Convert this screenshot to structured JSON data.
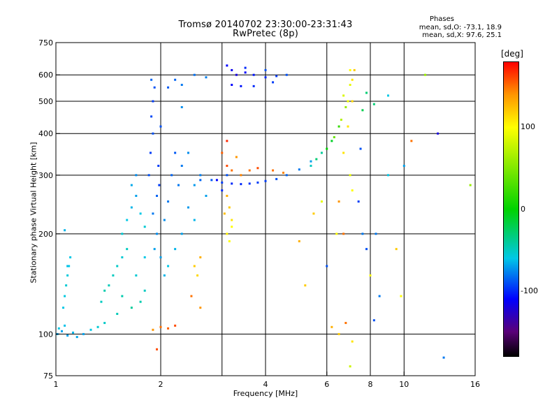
{
  "header": {
    "title_line1": "Tromsø 20140702 23:30:00-23:31:43",
    "title_line2": "RwPretec (8p)",
    "phases_heading": "Phases",
    "phase_o": "mean, sd,O: -73.1, 18.9",
    "phase_x": "mean, sd,X: 97.6, 25.1"
  },
  "colorbar": {
    "unit": "[deg]",
    "range": [
      -180,
      180
    ],
    "ticks": [
      {
        "value": 100,
        "label": "100"
      },
      {
        "value": 0,
        "label": "0"
      },
      {
        "value": -100,
        "label": "-100"
      }
    ]
  },
  "chart_data": {
    "type": "scatter",
    "xlabel": "Frequency [MHz]",
    "ylabel": "Stationary phase Virtual Height [km]",
    "x_scale": "log",
    "y_scale": "log",
    "xlim": [
      1,
      16
    ],
    "ylim": [
      75,
      750
    ],
    "x_ticks": [
      {
        "value": 1,
        "label": "1"
      },
      {
        "value": 2,
        "label": "2"
      },
      {
        "value": 4,
        "label": "4"
      },
      {
        "value": 6,
        "label": "6"
      },
      {
        "value": 8,
        "label": "8"
      },
      {
        "value": 10,
        "label": "10"
      },
      {
        "value": 16,
        "label": "16"
      }
    ],
    "y_ticks": [
      {
        "value": 75,
        "label": "75"
      },
      {
        "value": 100,
        "label": "100"
      },
      {
        "value": 200,
        "label": "200"
      },
      {
        "value": 300,
        "label": "300"
      },
      {
        "value": 400,
        "label": "400"
      },
      {
        "value": 500,
        "label": "500"
      },
      {
        "value": 600,
        "label": "600"
      },
      {
        "value": 750,
        "label": "750"
      }
    ],
    "x_gridlines": [
      2,
      3,
      4,
      6,
      8,
      10
    ],
    "y_gridlines": [
      100,
      200,
      300,
      400,
      500,
      600
    ],
    "series": [
      {
        "points": [
          [
            1.01,
            100,
            -70
          ],
          [
            1.02,
            104,
            -60
          ],
          [
            1.04,
            102,
            -70
          ],
          [
            1.06,
            106,
            -62
          ],
          [
            1.08,
            99,
            -70
          ],
          [
            1.12,
            101,
            -65
          ],
          [
            1.15,
            98,
            -68
          ],
          [
            1.2,
            100,
            -70
          ],
          [
            1.26,
            103,
            -60
          ],
          [
            1.32,
            105,
            -55
          ],
          [
            1.38,
            108,
            -52
          ],
          [
            1.05,
            120,
            -60
          ],
          [
            1.06,
            130,
            -58
          ],
          [
            1.07,
            140,
            -55
          ],
          [
            1.08,
            150,
            -57
          ],
          [
            1.09,
            160,
            -60
          ],
          [
            1.1,
            170,
            -60
          ],
          [
            1.06,
            205,
            -65
          ],
          [
            1.08,
            160,
            -62
          ],
          [
            1.35,
            125,
            -50
          ],
          [
            1.38,
            135,
            -45
          ],
          [
            1.42,
            140,
            -48
          ],
          [
            1.46,
            150,
            -50
          ],
          [
            1.5,
            160,
            -52
          ],
          [
            1.55,
            170,
            -55
          ],
          [
            1.6,
            180,
            -50
          ],
          [
            1.55,
            200,
            -55
          ],
          [
            1.6,
            220,
            -60
          ],
          [
            1.65,
            240,
            -65
          ],
          [
            1.7,
            260,
            -70
          ],
          [
            1.65,
            280,
            -68
          ],
          [
            1.75,
            230,
            -60
          ],
          [
            1.8,
            210,
            -55
          ],
          [
            1.7,
            300,
            -75
          ],
          [
            1.55,
            130,
            -45
          ],
          [
            1.65,
            120,
            -40
          ],
          [
            1.75,
            125,
            -45
          ],
          [
            1.8,
            135,
            -50
          ],
          [
            1.5,
            115,
            -48
          ],
          [
            1.7,
            150,
            -55
          ],
          [
            1.8,
            170,
            -60
          ],
          [
            1.85,
            300,
            -90
          ],
          [
            1.87,
            350,
            -95
          ],
          [
            1.9,
            400,
            -90
          ],
          [
            1.88,
            450,
            -92
          ],
          [
            1.9,
            500,
            -95
          ],
          [
            1.92,
            550,
            -90
          ],
          [
            1.88,
            580,
            -85
          ],
          [
            1.95,
            260,
            -85
          ],
          [
            1.9,
            230,
            -80
          ],
          [
            1.95,
            200,
            -75
          ],
          [
            1.92,
            180,
            -70
          ],
          [
            2.0,
            170,
            -70
          ],
          [
            1.97,
            320,
            -95
          ],
          [
            1.98,
            280,
            -95
          ],
          [
            2.0,
            420,
            -90
          ],
          [
            2.05,
            220,
            -75
          ],
          [
            2.1,
            250,
            -80
          ],
          [
            2.15,
            300,
            -85
          ],
          [
            2.2,
            350,
            -88
          ],
          [
            2.25,
            280,
            -80
          ],
          [
            2.3,
            320,
            -80
          ],
          [
            2.4,
            350,
            -75
          ],
          [
            2.5,
            280,
            -72
          ],
          [
            2.6,
            300,
            -78
          ],
          [
            2.7,
            260,
            -70
          ],
          [
            2.5,
            220,
            -65
          ],
          [
            2.3,
            200,
            -70
          ],
          [
            2.4,
            240,
            -72
          ],
          [
            2.1,
            550,
            -88
          ],
          [
            2.2,
            580,
            -85
          ],
          [
            2.3,
            560,
            -80
          ],
          [
            2.5,
            600,
            -82
          ],
          [
            2.7,
            590,
            -78
          ],
          [
            2.3,
            480,
            -75
          ],
          [
            2.2,
            180,
            -65
          ],
          [
            2.1,
            160,
            -60
          ],
          [
            2.05,
            150,
            -65
          ],
          [
            2.6,
            290,
            -85
          ],
          [
            2.8,
            290,
            -88
          ],
          [
            3.0,
            285,
            -95
          ],
          [
            3.2,
            283,
            -100
          ],
          [
            3.4,
            282,
            -100
          ],
          [
            3.6,
            283,
            -98
          ],
          [
            3.8,
            285,
            -95
          ],
          [
            4.0,
            288,
            -95
          ],
          [
            4.3,
            292,
            -90
          ],
          [
            4.6,
            300,
            -85
          ],
          [
            5.0,
            312,
            -80
          ],
          [
            5.4,
            330,
            -70
          ],
          [
            5.8,
            350,
            -40
          ],
          [
            6.2,
            380,
            -10
          ],
          [
            6.5,
            420,
            20
          ],
          [
            6.8,
            480,
            60
          ],
          [
            7.0,
            560,
            90
          ],
          [
            5.4,
            320,
            -50
          ],
          [
            5.6,
            335,
            -30
          ],
          [
            6.0,
            360,
            0
          ],
          [
            6.3,
            390,
            40
          ],
          [
            6.6,
            440,
            70
          ],
          [
            6.9,
            500,
            95
          ],
          [
            7.1,
            580,
            110
          ],
          [
            6.7,
            520,
            85
          ],
          [
            7.0,
            620,
            100
          ],
          [
            6.7,
            350,
            110
          ],
          [
            6.9,
            420,
            110
          ],
          [
            7.1,
            500,
            115
          ],
          [
            7.2,
            620,
            120
          ],
          [
            7.0,
            300,
            90
          ],
          [
            7.1,
            270,
            100
          ],
          [
            6.5,
            250,
            140
          ],
          [
            6.7,
            200,
            150
          ],
          [
            3.1,
            640,
            -110
          ],
          [
            3.2,
            620,
            -115
          ],
          [
            3.3,
            600,
            -120
          ],
          [
            3.5,
            610,
            -110
          ],
          [
            3.7,
            600,
            -105
          ],
          [
            4.0,
            590,
            -100
          ],
          [
            4.3,
            595,
            -95
          ],
          [
            4.6,
            600,
            -90
          ],
          [
            4.0,
            620,
            -90
          ],
          [
            3.5,
            630,
            -100
          ],
          [
            3.2,
            560,
            -110
          ],
          [
            3.4,
            555,
            -105
          ],
          [
            3.7,
            555,
            -100
          ],
          [
            4.2,
            570,
            -95
          ],
          [
            2.9,
            290,
            -110
          ],
          [
            3.0,
            270,
            -100
          ],
          [
            3.1,
            300,
            -90
          ],
          [
            3.0,
            350,
            155
          ],
          [
            3.1,
            320,
            160
          ],
          [
            3.2,
            310,
            150
          ],
          [
            3.3,
            340,
            140
          ],
          [
            3.4,
            300,
            145
          ],
          [
            3.6,
            310,
            150
          ],
          [
            3.8,
            315,
            160
          ],
          [
            4.2,
            310,
            150
          ],
          [
            4.5,
            305,
            145
          ],
          [
            3.1,
            260,
            130
          ],
          [
            3.15,
            240,
            120
          ],
          [
            3.2,
            220,
            110
          ],
          [
            3.1,
            200,
            105
          ],
          [
            3.15,
            190,
            100
          ],
          [
            3.2,
            210,
            100
          ],
          [
            3.05,
            230,
            125
          ],
          [
            3.1,
            380,
            170
          ],
          [
            1.9,
            103,
            140
          ],
          [
            2.0,
            105,
            150
          ],
          [
            2.1,
            104,
            155
          ],
          [
            2.2,
            106,
            160
          ],
          [
            1.95,
            90,
            160
          ],
          [
            2.5,
            160,
            120
          ],
          [
            2.6,
            170,
            130
          ],
          [
            2.55,
            150,
            115
          ],
          [
            2.45,
            130,
            150
          ],
          [
            2.6,
            120,
            140
          ],
          [
            6.2,
            105,
            130
          ],
          [
            6.5,
            100,
            120
          ],
          [
            6.8,
            108,
            150
          ],
          [
            7.1,
            95,
            110
          ],
          [
            7.0,
            80,
            80
          ],
          [
            5.0,
            190,
            130
          ],
          [
            5.2,
            140,
            120
          ],
          [
            6.0,
            160,
            -90
          ],
          [
            6.4,
            200,
            100
          ],
          [
            5.5,
            230,
            120
          ],
          [
            5.8,
            250,
            90
          ],
          [
            8.0,
            150,
            100
          ],
          [
            8.2,
            110,
            -90
          ],
          [
            8.5,
            130,
            -80
          ],
          [
            8.3,
            200,
            -80
          ],
          [
            9.0,
            300,
            -60
          ],
          [
            9.5,
            180,
            120
          ],
          [
            9.8,
            130,
            100
          ],
          [
            10.0,
            320,
            -70
          ],
          [
            10.5,
            380,
            150
          ],
          [
            11.5,
            600,
            60
          ],
          [
            12.5,
            400,
            -120
          ],
          [
            13.0,
            85,
            -80
          ],
          [
            15.5,
            280,
            60
          ],
          [
            9.0,
            520,
            -60
          ],
          [
            8.2,
            490,
            -30
          ],
          [
            7.6,
            470,
            -20
          ],
          [
            7.8,
            530,
            -30
          ],
          [
            7.5,
            360,
            -90
          ],
          [
            7.4,
            250,
            -95
          ],
          [
            7.6,
            200,
            -80
          ],
          [
            7.8,
            180,
            -90
          ]
        ]
      }
    ]
  }
}
